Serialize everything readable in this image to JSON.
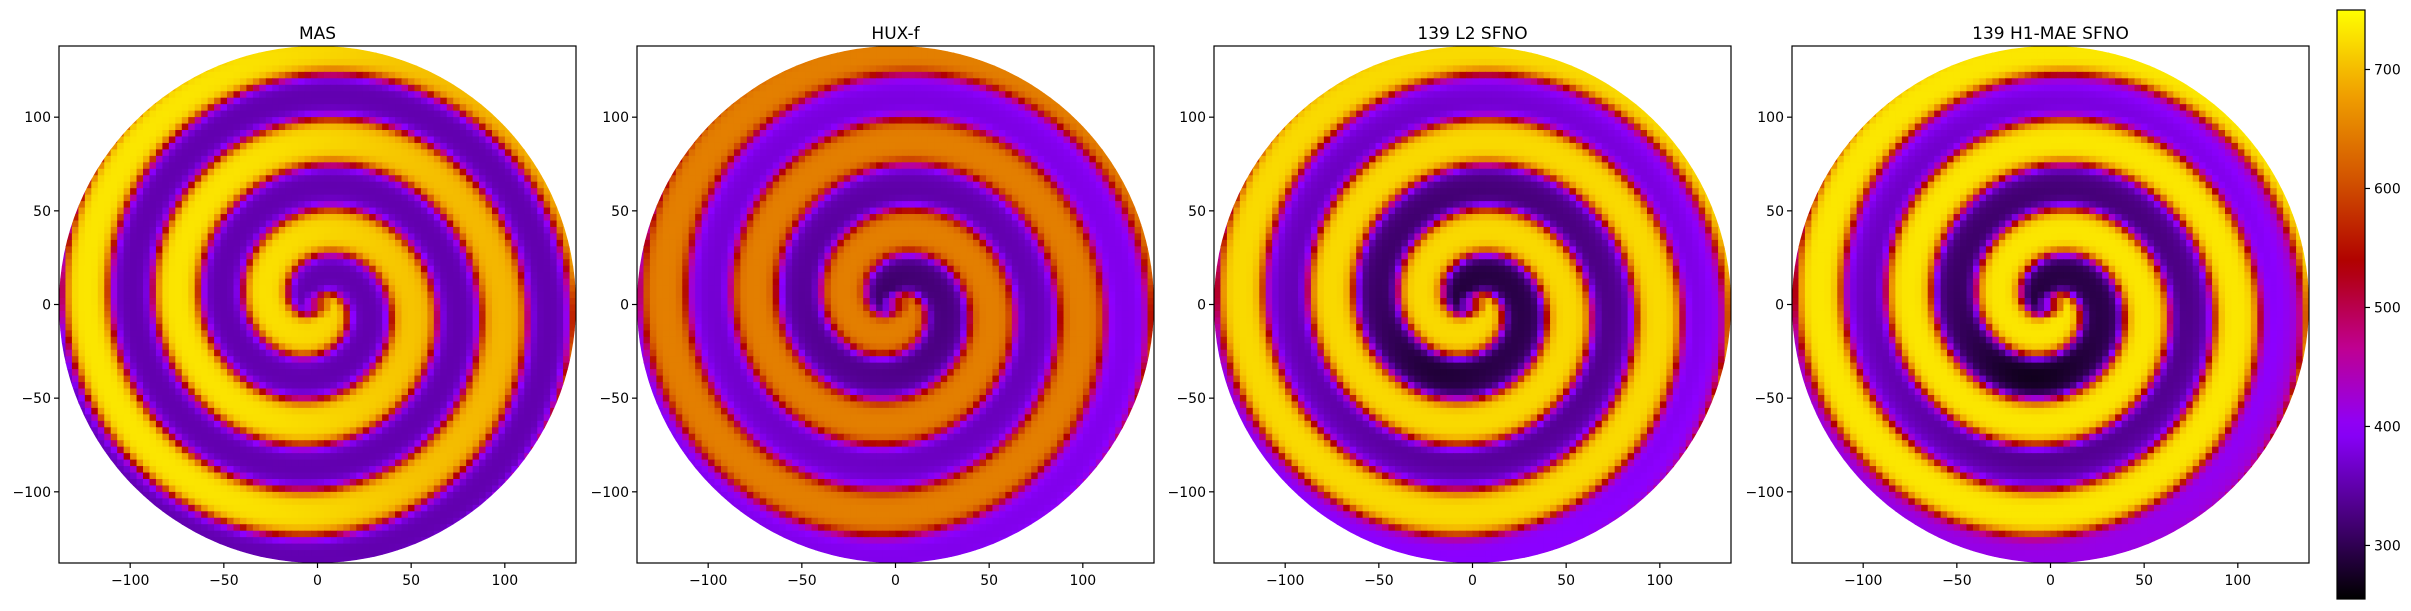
{
  "chart_data": {
    "type": "heatmap",
    "panels": [
      {
        "title": "MAS",
        "style": "mas"
      },
      {
        "title": "HUX-f",
        "style": "hux"
      },
      {
        "title": "139 L2 SFNO",
        "style": "l2"
      },
      {
        "title": "139 H1-MAE SFNO",
        "style": "h1"
      }
    ],
    "x_ticks": [
      -100,
      -50,
      0,
      50,
      100
    ],
    "y_ticks": [
      100,
      50,
      0,
      -50,
      -100
    ],
    "xlim": [
      -138,
      138
    ],
    "ylim": [
      -138,
      138
    ],
    "colorbar": {
      "colormap": "gnuplot",
      "range": [
        255,
        750
      ],
      "ticks": [
        300,
        400,
        500,
        600,
        700
      ],
      "colors": [
        "#000000",
        "#4a0080",
        "#8b00ff",
        "#c0008f",
        "#b00000",
        "#d35400",
        "#f0a000",
        "#ffff00"
      ]
    }
  }
}
